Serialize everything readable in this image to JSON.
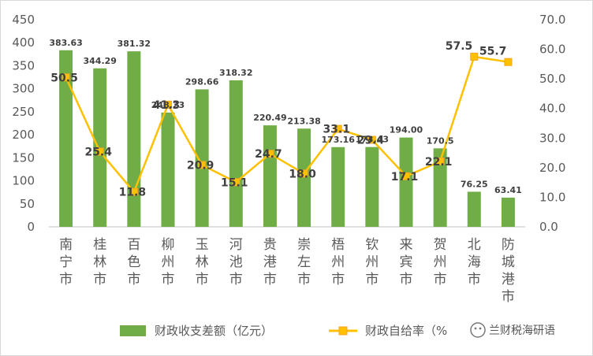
{
  "chart_data": {
    "type": "bar+line",
    "categories": [
      "南宁市",
      "桂林市",
      "百色市",
      "柳州市",
      "玉林市",
      "河池市",
      "贵港市",
      "崇左市",
      "梧州市",
      "钦州市",
      "来宾市",
      "贺州市",
      "北海市",
      "防城港市"
    ],
    "series": [
      {
        "name": "财政收支差额（亿元）",
        "type": "bar",
        "axis": "left",
        "color": "#70ad47",
        "values": [
          383.63,
          344.29,
          381.32,
          248.23,
          298.66,
          318.32,
          220.49,
          213.38,
          173.16,
          173.43,
          194.0,
          170.5,
          76.25,
          63.41
        ],
        "labels": [
          "383.63",
          "344.29",
          "381.32",
          "248.23",
          "298.66",
          "318.32",
          "220.49",
          "213.38",
          "173.16",
          "173.43",
          "194.00",
          "170.5",
          "76.25",
          "63.41"
        ]
      },
      {
        "name": "财政自给率（%）",
        "type": "line",
        "axis": "right",
        "color": "#ffc000",
        "marker_color": "#f5a623",
        "values": [
          50.5,
          25.4,
          11.8,
          41.3,
          20.9,
          15.1,
          24.7,
          18.0,
          33.1,
          29.4,
          17.1,
          22.1,
          57.5,
          55.7
        ],
        "labels": [
          "50.5",
          "25.4",
          "11.8",
          "41.3",
          "20.9",
          "15.1",
          "24.7",
          "18.0",
          "33.1",
          "29.4",
          "17.1",
          "22.1",
          "57.5",
          "55.7"
        ]
      }
    ],
    "left_axis": {
      "ylim": [
        0,
        450
      ],
      "ticks": [
        "0",
        "50",
        "100",
        "150",
        "200",
        "250",
        "300",
        "350",
        "400",
        "450"
      ]
    },
    "right_axis": {
      "ylim": [
        0,
        70
      ],
      "ticks": [
        "0.0",
        "10.0",
        "20.0",
        "30.0",
        "40.0",
        "50.0",
        "60.0",
        "70.0"
      ]
    },
    "legend": {
      "position": "bottom",
      "entries": [
        "财政收支差额（亿元）",
        "财政自给率（%"
      ]
    },
    "grid": false
  },
  "watermark": "兰财税海研语"
}
